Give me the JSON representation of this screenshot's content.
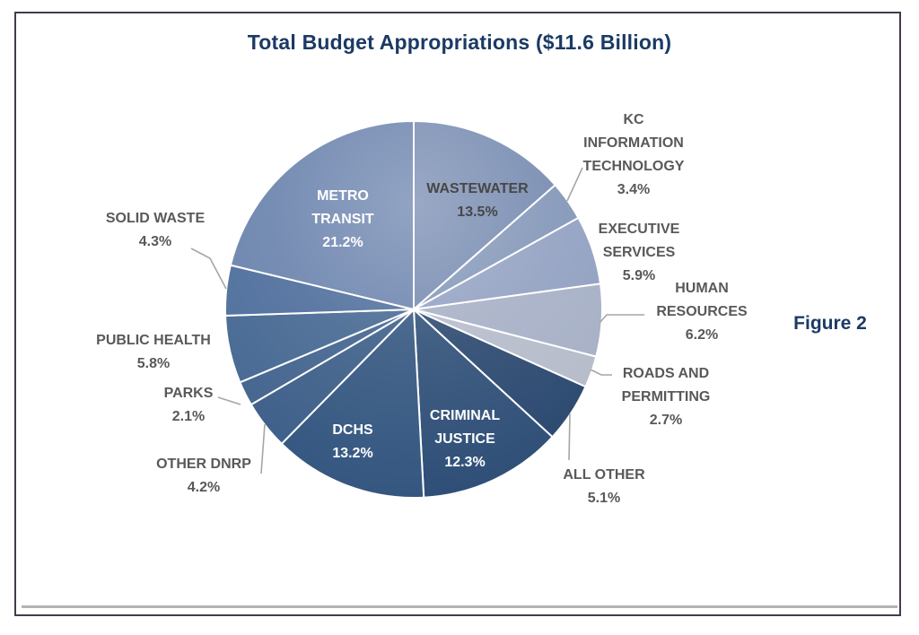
{
  "header": {
    "title": "Total Budget Appropriations ($11.6 Billion)",
    "title_color": "#1b3a64"
  },
  "figure": {
    "caption": "Figure 2",
    "caption_color": "#1b3a64"
  },
  "frame": {
    "border_color": "#443a4e",
    "underline_color": "#b3b3b3"
  },
  "chart_data": {
    "type": "pie",
    "title": "Total Budget Appropriations ($11.6 Billion)",
    "total_label": "$11.6 Billion",
    "start_angle_deg": 0,
    "direction": "clockwise",
    "legend": "none",
    "divider_color": "#ffffff",
    "leader_line_color": "#a6a6a6",
    "slices": [
      {
        "id": "wastewater",
        "label": "WASTEWATER",
        "label_lines": [
          "WASTEWATER"
        ],
        "value": 13.5,
        "pct_label": "13.5%",
        "color": "#7287ae",
        "label_color": "#474747",
        "label_position": "inside"
      },
      {
        "id": "kc-information-technology",
        "label": "KC INFORMATION TECHNOLOGY",
        "label_lines": [
          "KC",
          "INFORMATION",
          "TECHNOLOGY"
        ],
        "value": 3.4,
        "pct_label": "3.4%",
        "color": "#7f93b6",
        "label_color": "#595959",
        "label_position": "outside"
      },
      {
        "id": "executive-services",
        "label": "EXECUTIVE SERVICES",
        "label_lines": [
          "EXECUTIVE",
          "SERVICES"
        ],
        "value": 5.9,
        "pct_label": "5.9%",
        "color": "#8f9ec0",
        "label_color": "#595959",
        "label_position": "outside"
      },
      {
        "id": "human-resources",
        "label": "HUMAN RESOURCES",
        "label_lines": [
          "HUMAN",
          "RESOURCES"
        ],
        "value": 6.2,
        "pct_label": "6.2%",
        "color": "#a4aec4",
        "label_color": "#595959",
        "label_position": "outside"
      },
      {
        "id": "roads-and-permitting",
        "label": "ROADS AND PERMITTING",
        "label_lines": [
          "ROADS AND",
          "PERMITTING"
        ],
        "value": 2.7,
        "pct_label": "2.7%",
        "color": "#b4bac9",
        "label_color": "#595959",
        "label_position": "outside"
      },
      {
        "id": "all-other",
        "label": "ALL OTHER",
        "label_lines": [
          "ALL OTHER"
        ],
        "value": 5.1,
        "pct_label": "5.1%",
        "color": "#27456d",
        "label_color": "#595959",
        "label_position": "outside"
      },
      {
        "id": "criminal-justice",
        "label": "CRIMINAL JUSTICE",
        "label_lines": [
          "CRIMINAL",
          "JUSTICE"
        ],
        "value": 12.3,
        "pct_label": "12.3%",
        "color": "#2c4c75",
        "label_color": "#ffffff",
        "label_position": "inside"
      },
      {
        "id": "dchs",
        "label": "DCHS",
        "label_lines": [
          "DCHS"
        ],
        "value": 13.2,
        "pct_label": "13.2%",
        "color": "#31547e",
        "label_color": "#ffffff",
        "label_position": "inside"
      },
      {
        "id": "other-dnrp",
        "label": "OTHER DNRP",
        "label_lines": [
          "OTHER DNRP"
        ],
        "value": 4.2,
        "pct_label": "4.2%",
        "color": "#3a5c87",
        "label_color": "#595959",
        "label_position": "outside"
      },
      {
        "id": "parks",
        "label": "PARKS",
        "label_lines": [
          "PARKS"
        ],
        "value": 2.1,
        "pct_label": "2.1%",
        "color": "#3f618c",
        "label_color": "#595959",
        "label_position": "outside"
      },
      {
        "id": "public-health",
        "label": "PUBLIC HEALTH",
        "label_lines": [
          "PUBLIC HEALTH"
        ],
        "value": 5.8,
        "pct_label": "5.8%",
        "color": "#426590",
        "label_color": "#595959",
        "label_position": "outside"
      },
      {
        "id": "solid-waste",
        "label": "SOLID WASTE",
        "label_lines": [
          "SOLID WASTE"
        ],
        "value": 4.3,
        "pct_label": "4.3%",
        "color": "#4a6b9a",
        "label_color": "#595959",
        "label_position": "outside"
      },
      {
        "id": "metro-transit",
        "label": "METRO TRANSIT",
        "label_lines": [
          "METRO",
          "TRANSIT"
        ],
        "value": 21.2,
        "pct_label": "21.2%",
        "color": "#6780ab",
        "label_color": "#ffffff",
        "label_position": "inside"
      }
    ]
  }
}
